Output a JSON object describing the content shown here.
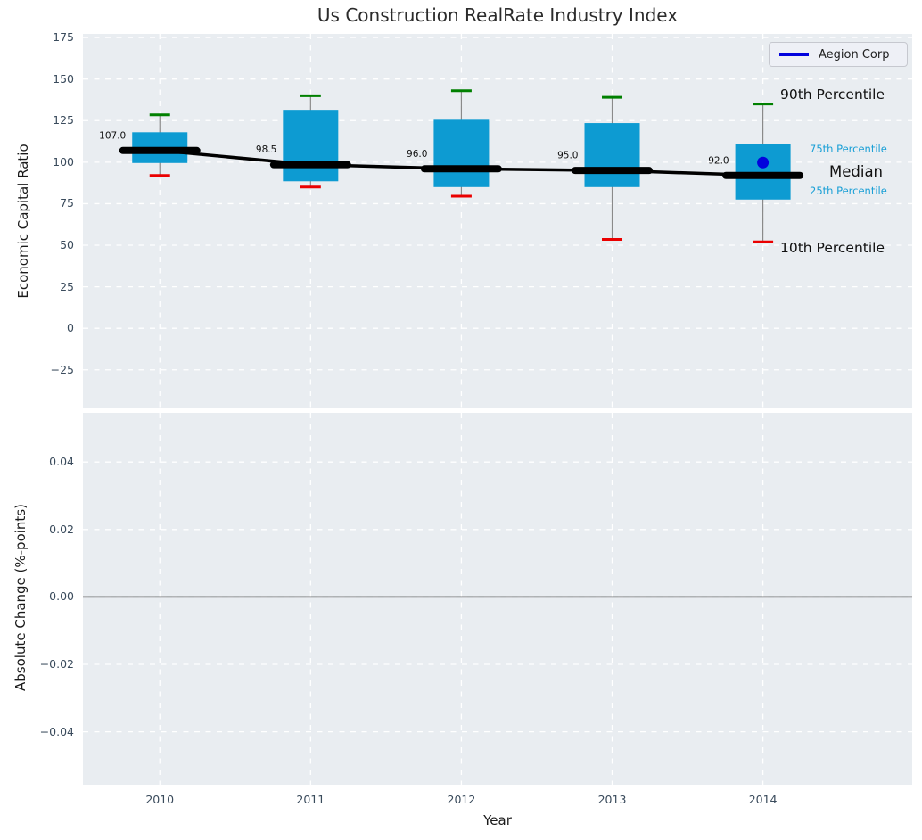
{
  "chart_data": {
    "type": "boxplot",
    "title": "Us Construction RealRate Industry Index",
    "xlabel": "Year",
    "xlim": [
      2009.49,
      2014.99
    ],
    "xticks": [
      {
        "v": 2010,
        "label": "2010"
      },
      {
        "v": 2011,
        "label": "2011"
      },
      {
        "v": 2012,
        "label": "2012"
      },
      {
        "v": 2013,
        "label": "2013"
      },
      {
        "v": 2014,
        "label": "2014"
      }
    ],
    "top_panel": {
      "ylabel": "Economic Capital Ratio",
      "ylim": [
        -48.2,
        177.2
      ],
      "grid": "white dashed",
      "yticks": [
        {
          "v": 175,
          "label": "175"
        },
        {
          "v": 150,
          "label": "150"
        },
        {
          "v": 125,
          "label": "125"
        },
        {
          "v": 100,
          "label": "100"
        },
        {
          "v": 75,
          "label": "75"
        },
        {
          "v": 50,
          "label": "50"
        },
        {
          "v": 25,
          "label": "25"
        },
        {
          "v": 0,
          "label": "0"
        },
        {
          "v": -25,
          "label": "−25"
        }
      ],
      "boxes": [
        {
          "year": 2010,
          "p10": 92,
          "p25": 99.5,
          "median": 107.0,
          "p75": 118,
          "p90": 128.5,
          "median_label": "107.0"
        },
        {
          "year": 2011,
          "p10": 85,
          "p25": 88.5,
          "median": 98.5,
          "p75": 131.5,
          "p90": 140,
          "median_label": "98.5"
        },
        {
          "year": 2012,
          "p10": 79.5,
          "p25": 85,
          "median": 96.0,
          "p75": 125.5,
          "p90": 143,
          "median_label": "96.0"
        },
        {
          "year": 2013,
          "p10": 53.5,
          "p25": 85,
          "median": 95.0,
          "p75": 123.5,
          "p90": 139,
          "median_label": "95.0"
        },
        {
          "year": 2014,
          "p10": 52,
          "p25": 77.5,
          "median": 92.0,
          "p75": 111,
          "p90": 135,
          "median_label": "92.0"
        }
      ],
      "median_series": [
        107.0,
        98.5,
        96.0,
        95.0,
        92.0
      ],
      "company_point": {
        "name": "Aegion Corp",
        "year": 2014,
        "value": 99.8
      },
      "percentile_labels": {
        "p90": "90th Percentile",
        "p75": "75th Percentile",
        "median": "Median",
        "p25": "25th Percentile",
        "p10": "10th Percentile"
      }
    },
    "bottom_panel": {
      "ylabel": "Absolute Change (%-points)",
      "ylim": [
        -0.0557,
        0.0546
      ],
      "grid": "white dashed",
      "yticks": [
        {
          "v": 0.04,
          "label": "0.04"
        },
        {
          "v": 0.02,
          "label": "0.02"
        },
        {
          "v": 0.0,
          "label": "0.00"
        },
        {
          "v": -0.02,
          "label": "−0.02"
        },
        {
          "v": -0.04,
          "label": "−0.04"
        }
      ],
      "zero_line": 0.0
    },
    "legend": {
      "position": "upper right",
      "entries": [
        {
          "label": "Aegion Corp",
          "color": "#0202dd"
        }
      ]
    }
  },
  "colors": {
    "axes_bg": "#e9edf1",
    "grid": "#ffffff",
    "box_fill": "#0d9bd2",
    "p90_cap": "#008000",
    "p10_cap": "#ea0000",
    "whisker": "#8a8a8a",
    "median_line": "#000000",
    "company_point": "#0202dd",
    "percentile_text": "#199fd6",
    "tick_text": "#3a4b5c"
  }
}
